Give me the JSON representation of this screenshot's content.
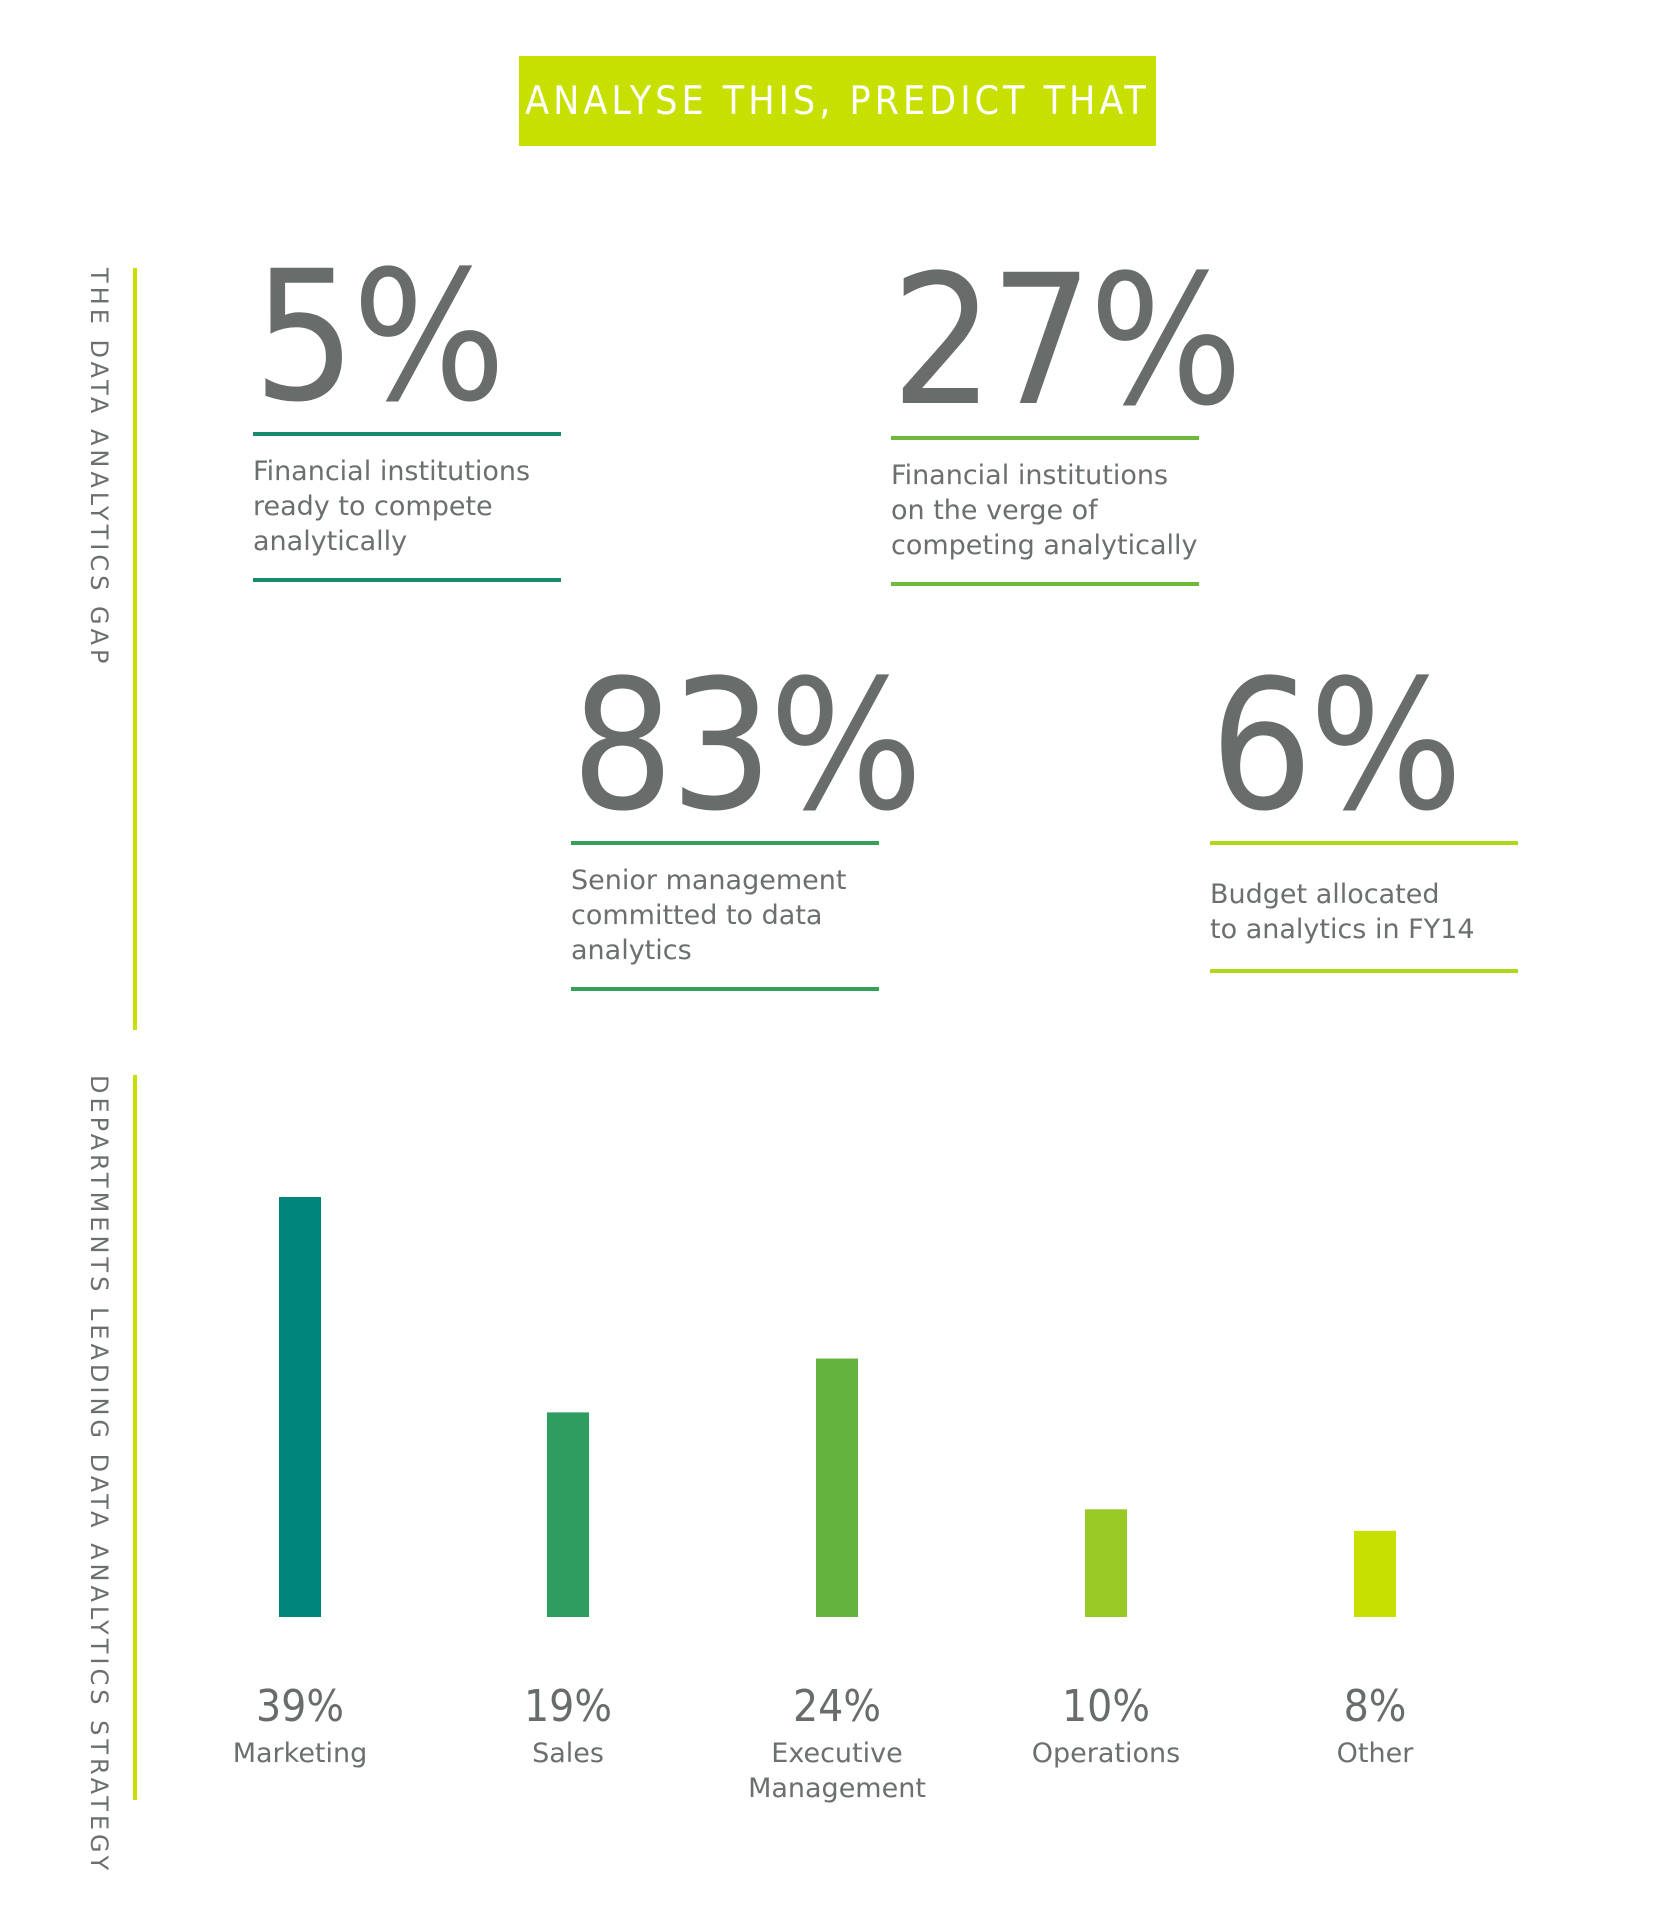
{
  "banner": {
    "title": "ANALYSE THIS, PREDICT THAT"
  },
  "sections": {
    "gap_label": "THE DATA ANALYTICS GAP",
    "departments_label": "DEPARTMENTS LEADING DATA ANALYTICS STRATEGY"
  },
  "stats": [
    {
      "value": "5%",
      "description": "Financial institutions\nready to compete\nanalytically",
      "color": "#1a8a6e"
    },
    {
      "value": "27%",
      "description": "Financial institutions\non the verge of\ncompeting analytically",
      "color": "#6cb93c"
    },
    {
      "value": "83%",
      "description": "Senior management\ncommitted to data\nanalytics",
      "color": "#34a05c"
    },
    {
      "value": "6%",
      "description": "Budget allocated\nto analytics in FY14",
      "color": "#b0d61a"
    }
  ],
  "colors": {
    "accent": "#c7e000",
    "text": "#6b6f6e"
  },
  "chart_data": {
    "type": "bar",
    "title": "",
    "categories": [
      "Marketing",
      "Sales",
      "Executive\nManagement",
      "Operations",
      "Other"
    ],
    "values": [
      39,
      19,
      24,
      10,
      8
    ],
    "value_labels": [
      "39%",
      "19%",
      "24%",
      "10%",
      "8%"
    ],
    "colors": [
      "#00857a",
      "#2f9c60",
      "#64b33e",
      "#98c924",
      "#c7e000"
    ],
    "ylim": [
      0,
      39
    ],
    "grid": false,
    "legend": "none"
  }
}
